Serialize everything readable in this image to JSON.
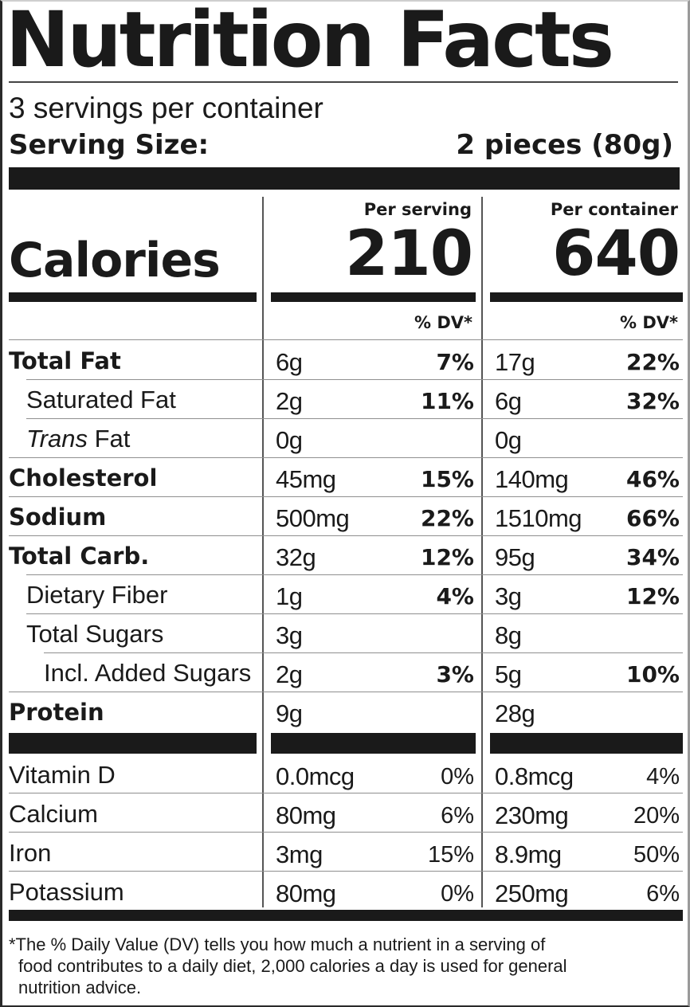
{
  "title": "Nutrition Facts",
  "servings_per_container": "3 servings per container",
  "serving_size": {
    "label": "Serving Size:",
    "value": "2 pieces (80g)"
  },
  "calories": {
    "label": "Calories",
    "per_serving_header": "Per serving",
    "per_container_header": "Per container",
    "per_serving": "210",
    "per_container": "640"
  },
  "dv_header": "% DV*",
  "nutrients": [
    {
      "name": "Total Fat",
      "style": "bold",
      "indent": 0,
      "serving_amount": "6g",
      "serving_dv": "7%",
      "container_amount": "17g",
      "container_dv": "22%"
    },
    {
      "name": "Saturated Fat",
      "style": "normal",
      "indent": 1,
      "serving_amount": "2g",
      "serving_dv": "11%",
      "container_amount": "6g",
      "container_dv": "32%"
    },
    {
      "name_italic": "Trans",
      "name": " Fat",
      "style": "normal",
      "indent": 1,
      "serving_amount": "0g",
      "serving_dv": "",
      "container_amount": "0g",
      "container_dv": ""
    },
    {
      "name": "Cholesterol",
      "style": "bold",
      "indent": 0,
      "serving_amount": "45mg",
      "serving_dv": "15%",
      "container_amount": "140mg",
      "container_dv": "46%"
    },
    {
      "name": "Sodium",
      "style": "bold",
      "indent": 0,
      "serving_amount": "500mg",
      "serving_dv": "22%",
      "container_amount": "1510mg",
      "container_dv": "66%"
    },
    {
      "name": "Total Carb.",
      "style": "bold",
      "indent": 0,
      "serving_amount": "32g",
      "serving_dv": "12%",
      "container_amount": "95g",
      "container_dv": "34%"
    },
    {
      "name": "Dietary Fiber",
      "style": "normal",
      "indent": 1,
      "serving_amount": "1g",
      "serving_dv": "4%",
      "container_amount": "3g",
      "container_dv": "12%"
    },
    {
      "name": "Total Sugars",
      "style": "normal",
      "indent": 1,
      "serving_amount": "3g",
      "serving_dv": "",
      "container_amount": "8g",
      "container_dv": ""
    },
    {
      "name": "Incl. Added Sugars",
      "style": "normal",
      "indent": 2,
      "serving_amount": "2g",
      "serving_dv": "3%",
      "container_amount": "5g",
      "container_dv": "10%"
    },
    {
      "name": "Protein",
      "style": "bold",
      "indent": 0,
      "serving_amount": "9g",
      "serving_dv": "",
      "container_amount": "28g",
      "container_dv": ""
    }
  ],
  "vitamins": [
    {
      "name": "Vitamin D",
      "serving_amount": "0.0mcg",
      "serving_dv": "0%",
      "container_amount": "0.8mcg",
      "container_dv": "4%"
    },
    {
      "name": "Calcium",
      "serving_amount": "80mg",
      "serving_dv": "6%",
      "container_amount": "230mg",
      "container_dv": "20%"
    },
    {
      "name": "Iron",
      "serving_amount": "3mg",
      "serving_dv": "15%",
      "container_amount": "8.9mg",
      "container_dv": "50%"
    },
    {
      "name": "Potassium",
      "serving_amount": "80mg",
      "serving_dv": "0%",
      "container_amount": "250mg",
      "container_dv": "6%"
    }
  ],
  "footnote": [
    "*The % Daily Value (DV) tells you how much a nutrient in a serving of",
    "food contributes to a daily diet, 2,000 calories a day is used for general",
    "nutrition advice."
  ]
}
